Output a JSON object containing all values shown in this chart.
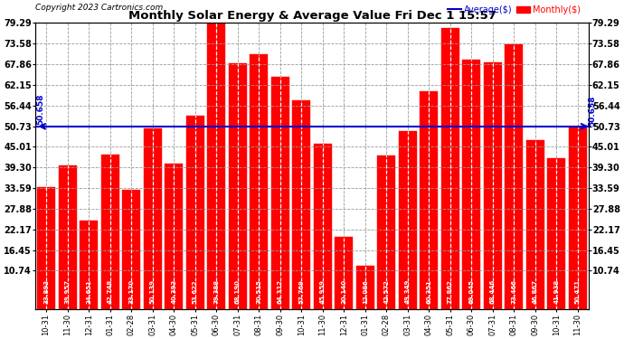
{
  "title": "Monthly Solar Energy & Average Value Fri Dec 1 15:57",
  "copyright": "Copyright 2023 Cartronics.com",
  "categories": [
    "10-31",
    "11-30",
    "12-31",
    "01-31",
    "02-28",
    "03-31",
    "04-30",
    "05-31",
    "06-30",
    "07-31",
    "08-31",
    "09-30",
    "10-31",
    "11-30",
    "12-31",
    "01-31",
    "02-28",
    "03-31",
    "04-30",
    "05-31",
    "06-30",
    "07-31",
    "08-31",
    "09-30",
    "10-31",
    "11-30"
  ],
  "values": [
    33.893,
    39.957,
    24.651,
    42.748,
    33.17,
    50.139,
    40.393,
    53.622,
    79.388,
    68.19,
    70.515,
    64.312,
    57.769,
    45.959,
    20.14,
    12.086,
    42.572,
    49.349,
    60.351,
    77.862,
    69.045,
    68.446,
    73.466,
    46.867,
    41.938,
    50.471
  ],
  "average": 50.658,
  "bar_color": "#ff0000",
  "avg_line_color": "#0000cd",
  "yticks": [
    10.74,
    16.45,
    22.17,
    27.88,
    33.59,
    39.3,
    45.01,
    50.73,
    56.44,
    62.15,
    67.86,
    73.58,
    79.29
  ],
  "avg_label": "50.658",
  "legend_avg": "Average($)",
  "legend_monthly": "Monthly($)",
  "background_color": "#ffffff",
  "grid_color": "#999999",
  "dashed_line_color": "#ffffff",
  "value_text_color": "#ffffff",
  "figsize": [
    6.9,
    3.75
  ],
  "dpi": 100
}
